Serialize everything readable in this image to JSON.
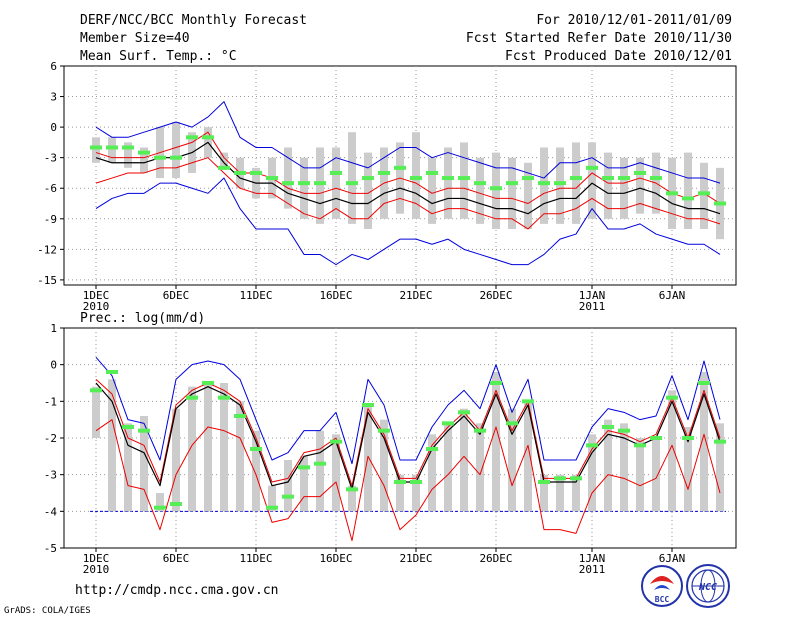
{
  "header": {
    "title": "DERF/NCC/BCC Monthly Forecast",
    "member_size": "Member Size=40",
    "variable": "Mean Surf. Temp.: °C",
    "valid_period": "For 2010/12/01-2011/01/09",
    "fcst_started": "Fcst Started Refer Date 2010/11/30",
    "fcst_produced": "Fcst Produced Date 2010/12/01"
  },
  "footer": {
    "url": "http://cmdp.ncc.cma.gov.cn",
    "grads_credit": "GrADS: COLA/IGES",
    "logo_bcc_text": "BCC",
    "logo_ncc_text": "NCC"
  },
  "colors": {
    "box": "#cccccc",
    "median": "#55ee55",
    "mean": "#000000",
    "spread": "#ee0000",
    "envelope": "#0000dd",
    "grid": "#999999"
  },
  "chart_data": [
    {
      "type": "box-ensemble",
      "title": "Mean Surf. Temp.: °C",
      "ylim": [
        -15.5,
        6
      ],
      "yticks": [
        6,
        3,
        0,
        -3,
        -6,
        -9,
        -12,
        -15
      ],
      "xticks": [
        {
          "day": 1,
          "label": "1DEC",
          "label2": "2010"
        },
        {
          "day": 6,
          "label": "6DEC",
          "label2": ""
        },
        {
          "day": 11,
          "label": "11DEC",
          "label2": ""
        },
        {
          "day": 16,
          "label": "16DEC",
          "label2": ""
        },
        {
          "day": 21,
          "label": "21DEC",
          "label2": ""
        },
        {
          "day": 26,
          "label": "26DEC",
          "label2": ""
        },
        {
          "day": 32,
          "label": "1JAN",
          "label2": "2011"
        },
        {
          "day": 37,
          "label": "6JAN",
          "label2": ""
        }
      ],
      "days": [
        1,
        2,
        3,
        4,
        5,
        6,
        7,
        8,
        9,
        10,
        11,
        12,
        13,
        14,
        15,
        16,
        17,
        18,
        19,
        20,
        21,
        22,
        23,
        24,
        25,
        26,
        27,
        28,
        29,
        30,
        31,
        32,
        33,
        34,
        35,
        36,
        37,
        38,
        39,
        40
      ],
      "box_low": [
        -3.5,
        -3.5,
        -4,
        -4.5,
        -5,
        -5,
        -4.5,
        -3,
        -4,
        -6,
        -7,
        -7,
        -8,
        -9,
        -9.5,
        -9,
        -9.5,
        -10,
        -9,
        -8.5,
        -9,
        -9.5,
        -9,
        -9,
        -9.5,
        -10,
        -10,
        -10,
        -9.5,
        -9.5,
        -9.5,
        -9,
        -9,
        -9,
        -8.5,
        -8.5,
        -10,
        -10,
        -10,
        -11
      ],
      "box_high": [
        -1,
        -1,
        -1.5,
        -2,
        0,
        0.5,
        -0.5,
        0,
        -2.5,
        -3,
        -4,
        -3,
        -2,
        -3,
        -2,
        -2,
        -0.5,
        -2.5,
        -2,
        -1.5,
        -0.5,
        -3,
        -2,
        -1.5,
        -3,
        -2.5,
        -3,
        -3.5,
        -2,
        -2,
        -1.5,
        -1.5,
        -2.5,
        -3,
        -3,
        -2.5,
        -3,
        -2.5,
        -3.5,
        -4
      ],
      "median": [
        -2,
        -2,
        -2,
        -2.5,
        -3,
        -3,
        -1,
        -1,
        -4,
        -4.5,
        -4.5,
        -5,
        -5.5,
        -5.5,
        -5.5,
        -4.5,
        -5.5,
        -5,
        -4.5,
        -4,
        -5,
        -4.5,
        -5,
        -5,
        -5.5,
        -6,
        -5.5,
        -5,
        -5.5,
        -5.5,
        -5,
        -4,
        -5,
        -5,
        -4.5,
        -5,
        -6.5,
        -7,
        -6.5,
        -7.5
      ],
      "mean": [
        -3,
        -3.5,
        -3.5,
        -3.5,
        -3,
        -3,
        -2.5,
        -1.5,
        -3.5,
        -5,
        -5.5,
        -5.5,
        -6.5,
        -7,
        -7.5,
        -7,
        -7.5,
        -7.5,
        -6.5,
        -6,
        -6.5,
        -7.5,
        -7,
        -7,
        -7.5,
        -8,
        -8,
        -8.5,
        -7.5,
        -7,
        -7,
        -5.5,
        -6.5,
        -6.5,
        -6,
        -6.5,
        -7.5,
        -8,
        -8,
        -8.5
      ],
      "spread_high": [
        -2.5,
        -3,
        -3,
        -3,
        -2.5,
        -2,
        -1.5,
        -0.5,
        -3,
        -4.5,
        -4.5,
        -5,
        -6,
        -6.5,
        -6.5,
        -6,
        -6.5,
        -6.5,
        -5.5,
        -5,
        -5.5,
        -6.5,
        -6,
        -6,
        -6.5,
        -7,
        -7,
        -7.5,
        -6.5,
        -6,
        -6,
        -4.5,
        -5.5,
        -5.5,
        -5,
        -5.5,
        -6.5,
        -7,
        -6.5,
        -7.5
      ],
      "spread_low": [
        -5.5,
        -5,
        -4.5,
        -4.5,
        -4,
        -4,
        -3.5,
        -3,
        -4.5,
        -6,
        -6.5,
        -6.5,
        -7.5,
        -8.5,
        -9,
        -8,
        -9,
        -9,
        -7.5,
        -7,
        -7.5,
        -8.5,
        -8,
        -8,
        -8.5,
        -9,
        -9,
        -10,
        -8.5,
        -8.5,
        -8,
        -7,
        -8,
        -8,
        -7.5,
        -8,
        -8.5,
        -9,
        -9,
        -9.5
      ],
      "envelope_high": [
        0,
        -1,
        -1,
        -0.5,
        0,
        0.5,
        0,
        1,
        2.5,
        -1,
        -2,
        -2,
        -3,
        -4,
        -4,
        -3,
        -3.5,
        -4,
        -3,
        -2,
        -2,
        -3,
        -2.5,
        -3,
        -3.5,
        -4,
        -4,
        -4.5,
        -5,
        -3.5,
        -3.5,
        -3,
        -4,
        -4,
        -3.5,
        -4,
        -4.5,
        -5,
        -5,
        -5.5
      ],
      "envelope_low": [
        -8,
        -7,
        -6.5,
        -6.5,
        -5.5,
        -5.5,
        -6,
        -6.5,
        -5,
        -8,
        -10,
        -10,
        -10,
        -12.5,
        -12.5,
        -13.5,
        -12.5,
        -13,
        -12,
        -11,
        -11,
        -11.5,
        -11,
        -12,
        -12.5,
        -13,
        -13.5,
        -13.5,
        -12.5,
        -11,
        -10.5,
        -8,
        -10,
        -10,
        -9.5,
        -10.5,
        -11,
        -11.5,
        -11.5,
        -12.5
      ]
    },
    {
      "type": "box-ensemble",
      "title": "Prec.: log(mm/d)",
      "ylim": [
        -5,
        1
      ],
      "yticks": [
        1,
        0,
        -1,
        -2,
        -3,
        -4,
        -5
      ],
      "baseline": -4,
      "xticks": [
        {
          "day": 1,
          "label": "1DEC",
          "label2": "2010"
        },
        {
          "day": 6,
          "label": "6DEC",
          "label2": ""
        },
        {
          "day": 11,
          "label": "11DEC",
          "label2": ""
        },
        {
          "day": 16,
          "label": "16DEC",
          "label2": ""
        },
        {
          "day": 21,
          "label": "21DEC",
          "label2": ""
        },
        {
          "day": 26,
          "label": "26DEC",
          "label2": ""
        },
        {
          "day": 32,
          "label": "1JAN",
          "label2": "2011"
        },
        {
          "day": 37,
          "label": "6JAN",
          "label2": ""
        }
      ],
      "days": [
        1,
        2,
        3,
        4,
        5,
        6,
        7,
        8,
        9,
        10,
        11,
        12,
        13,
        14,
        15,
        16,
        17,
        18,
        19,
        20,
        21,
        22,
        23,
        24,
        25,
        26,
        27,
        28,
        29,
        30,
        31,
        32,
        33,
        34,
        35,
        36,
        37,
        38,
        39,
        40
      ],
      "box_low": [
        -2,
        -4,
        -4,
        -4,
        -4,
        -4,
        -4,
        -4,
        -4,
        -4,
        -4,
        -4,
        -4,
        -4,
        -4,
        -4,
        -4,
        -4,
        -4,
        -4,
        -4,
        -4,
        -4,
        -4,
        -4,
        -4,
        -4,
        -4,
        -4,
        -4,
        -4,
        -4,
        -4,
        -4,
        -4,
        -4,
        -4,
        -4,
        -4,
        -4
      ],
      "box_high": [
        -0.6,
        -0.4,
        -1.6,
        -1.4,
        -3.5,
        -1.2,
        -0.6,
        -0.5,
        -0.5,
        -1,
        -1.8,
        -3.3,
        -2.6,
        -2.5,
        -1.8,
        -1.9,
        -3.3,
        -1.1,
        -1.5,
        -3,
        -3,
        -1.9,
        -1.6,
        -1.2,
        -1.6,
        -0.2,
        -1.2,
        -1,
        -3,
        -3,
        -3,
        -1.9,
        -1.5,
        -1.6,
        -2,
        -2,
        -0.7,
        -1.7,
        -0.2,
        -1.6
      ],
      "median": [
        -0.7,
        -0.2,
        -1.7,
        -1.8,
        -3.9,
        -3.8,
        -0.9,
        -0.5,
        -0.9,
        -1.4,
        -2.3,
        -3.9,
        -3.6,
        -2.8,
        -2.7,
        -2.1,
        -3.4,
        -1.1,
        -1.8,
        -3.2,
        -3.2,
        -2.3,
        -1.6,
        -1.3,
        -1.8,
        -0.5,
        -1.6,
        -1,
        -3.2,
        -3.1,
        -3.1,
        -2.2,
        -1.7,
        -1.8,
        -2.2,
        -2,
        -0.9,
        -2,
        -0.5,
        -2.1
      ],
      "mean": [
        -0.5,
        -1,
        -2.2,
        -2.4,
        -3.3,
        -1.2,
        -0.8,
        -0.6,
        -0.8,
        -1.1,
        -2.1,
        -3.3,
        -3.2,
        -2.5,
        -2.4,
        -2.1,
        -3.4,
        -1.3,
        -2,
        -3.2,
        -3.2,
        -2.3,
        -1.8,
        -1.4,
        -1.9,
        -0.8,
        -1.9,
        -1.1,
        -3.2,
        -3.2,
        -3.2,
        -2.4,
        -1.9,
        -2,
        -2.2,
        -2,
        -1,
        -2.1,
        -0.8,
        -2.1
      ],
      "spread_high": [
        -0.4,
        -0.8,
        -2,
        -2.2,
        -3.2,
        -1.1,
        -0.7,
        -0.5,
        -0.7,
        -1,
        -2,
        -3.2,
        -3.1,
        -2.4,
        -2.3,
        -2,
        -3.3,
        -1.2,
        -1.9,
        -3.1,
        -3.1,
        -2.2,
        -1.7,
        -1.3,
        -1.8,
        -0.7,
        -1.8,
        -1,
        -3.1,
        -3.1,
        -3.1,
        -2.3,
        -1.8,
        -1.9,
        -2.1,
        -1.9,
        -0.9,
        -2,
        -0.7,
        -2
      ],
      "spread_low": [
        -1.8,
        -1.5,
        -3.3,
        -3.4,
        -4.5,
        -3,
        -2.2,
        -1.7,
        -1.8,
        -2,
        -3,
        -4.3,
        -4.2,
        -3.6,
        -3.6,
        -3.2,
        -4.8,
        -2.5,
        -3.3,
        -4.5,
        -4.1,
        -3.4,
        -3,
        -2.5,
        -3,
        -1.7,
        -3.3,
        -2.2,
        -4.5,
        -4.5,
        -4.6,
        -3.5,
        -3,
        -3.1,
        -3.3,
        -3.1,
        -2.2,
        -3.4,
        -1.9,
        -3.5
      ],
      "envelope_high": [
        0.2,
        -0.3,
        -1.5,
        -1.6,
        -2.6,
        -0.4,
        0,
        0.1,
        0,
        -0.4,
        -1.5,
        -2.6,
        -2.4,
        -1.8,
        -1.8,
        -1.3,
        -2.7,
        -0.4,
        -1.1,
        -2.6,
        -2.6,
        -1.7,
        -1.1,
        -0.7,
        -1.2,
        0,
        -1.3,
        -0.4,
        -2.6,
        -2.6,
        -2.6,
        -1.7,
        -1.2,
        -1.3,
        -1.5,
        -1.4,
        -0.3,
        -1.5,
        0.1,
        -1.5
      ]
    }
  ]
}
